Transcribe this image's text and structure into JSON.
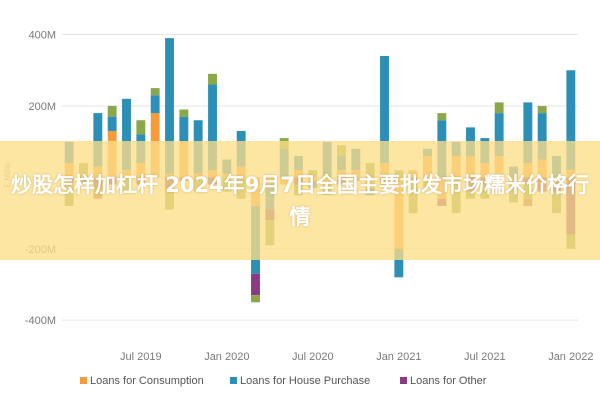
{
  "banner": {
    "text": "炒股怎样加杠杆 2024年9月7日全国主要批发市场糯米价格行情"
  },
  "chart_data": {
    "type": "bar",
    "stacked": true,
    "ylabel": "£ Millio",
    "ylim": [
      -450,
      480
    ],
    "yticks": [
      {
        "value": 400,
        "label": "400M"
      },
      {
        "value": 200,
        "label": "200M"
      },
      {
        "value": 0,
        "label": ""
      },
      {
        "value": -200,
        "label": "-200M"
      },
      {
        "value": -400,
        "label": "-400M"
      }
    ],
    "xticks": [
      {
        "index": 5,
        "label": "Jul 2019"
      },
      {
        "index": 11,
        "label": "Jan 2020"
      },
      {
        "index": 17,
        "label": "Jul 2020"
      },
      {
        "index": 23,
        "label": "Jan 2021"
      },
      {
        "index": 29,
        "label": "Jul 2021"
      },
      {
        "index": 35,
        "label": "Jan 2022"
      }
    ],
    "series": [
      {
        "name": "Loans for Consumption",
        "color": "#f59b3c",
        "values": [
          40,
          10,
          30,
          130,
          20,
          40,
          180,
          10,
          100,
          10,
          20,
          10,
          30,
          -80,
          -20,
          -20,
          20,
          -10,
          -20,
          20,
          20,
          -30,
          40,
          -200,
          20,
          60,
          -60,
          60,
          60,
          40,
          60,
          -10,
          40,
          50,
          -10,
          20
        ]
      },
      {
        "name": "Loans for House Purchase",
        "color": "#2b8fb8",
        "values": [
          60,
          -20,
          150,
          40,
          200,
          80,
          50,
          380,
          70,
          150,
          240,
          40,
          100,
          -190,
          -70,
          80,
          40,
          -20,
          100,
          40,
          60,
          -20,
          300,
          -80,
          -10,
          20,
          160,
          40,
          80,
          70,
          120,
          30,
          170,
          130,
          60,
          280
        ]
      },
      {
        "name": "Loans for Other",
        "color": "#8a3b82",
        "values": [
          -20,
          0,
          -30,
          -20,
          0,
          -20,
          0,
          -30,
          -10,
          0,
          -20,
          0,
          0,
          -60,
          -30,
          0,
          -20,
          0,
          0,
          -20,
          0,
          0,
          -10,
          0,
          0,
          0,
          -20,
          0,
          -40,
          -20,
          0,
          0,
          -20,
          -40,
          -30,
          -160
        ]
      },
      {
        "name": "",
        "color": "#8aa84a",
        "values": [
          -60,
          30,
          -10,
          30,
          -40,
          40,
          20,
          -60,
          20,
          -40,
          30,
          -40,
          -60,
          -20,
          -70,
          30,
          -30,
          20,
          -30,
          30,
          -10,
          40,
          -20,
          20,
          -90,
          -30,
          20,
          -100,
          -20,
          -40,
          30,
          -60,
          -40,
          20,
          -60,
          -40
        ]
      },
      {
        "name": "",
        "color": "#b06a42",
        "values": [
          0,
          0,
          -20,
          0,
          0,
          0,
          0,
          0,
          0,
          0,
          0,
          0,
          0,
          0,
          0,
          0,
          0,
          0,
          0,
          0,
          0,
          0,
          0,
          0,
          0,
          0,
          0,
          0,
          0,
          0,
          0,
          0,
          -20,
          0,
          0,
          0
        ]
      }
    ],
    "legend": {
      "position": "bottom",
      "entries": [
        {
          "label": "Loans for Consumption",
          "color": "#f59b3c"
        },
        {
          "label": "Loans for House Purchase",
          "color": "#2b8fb8"
        },
        {
          "label": "Loans for Other",
          "color": "#8a3b82"
        }
      ]
    },
    "grid": true
  }
}
